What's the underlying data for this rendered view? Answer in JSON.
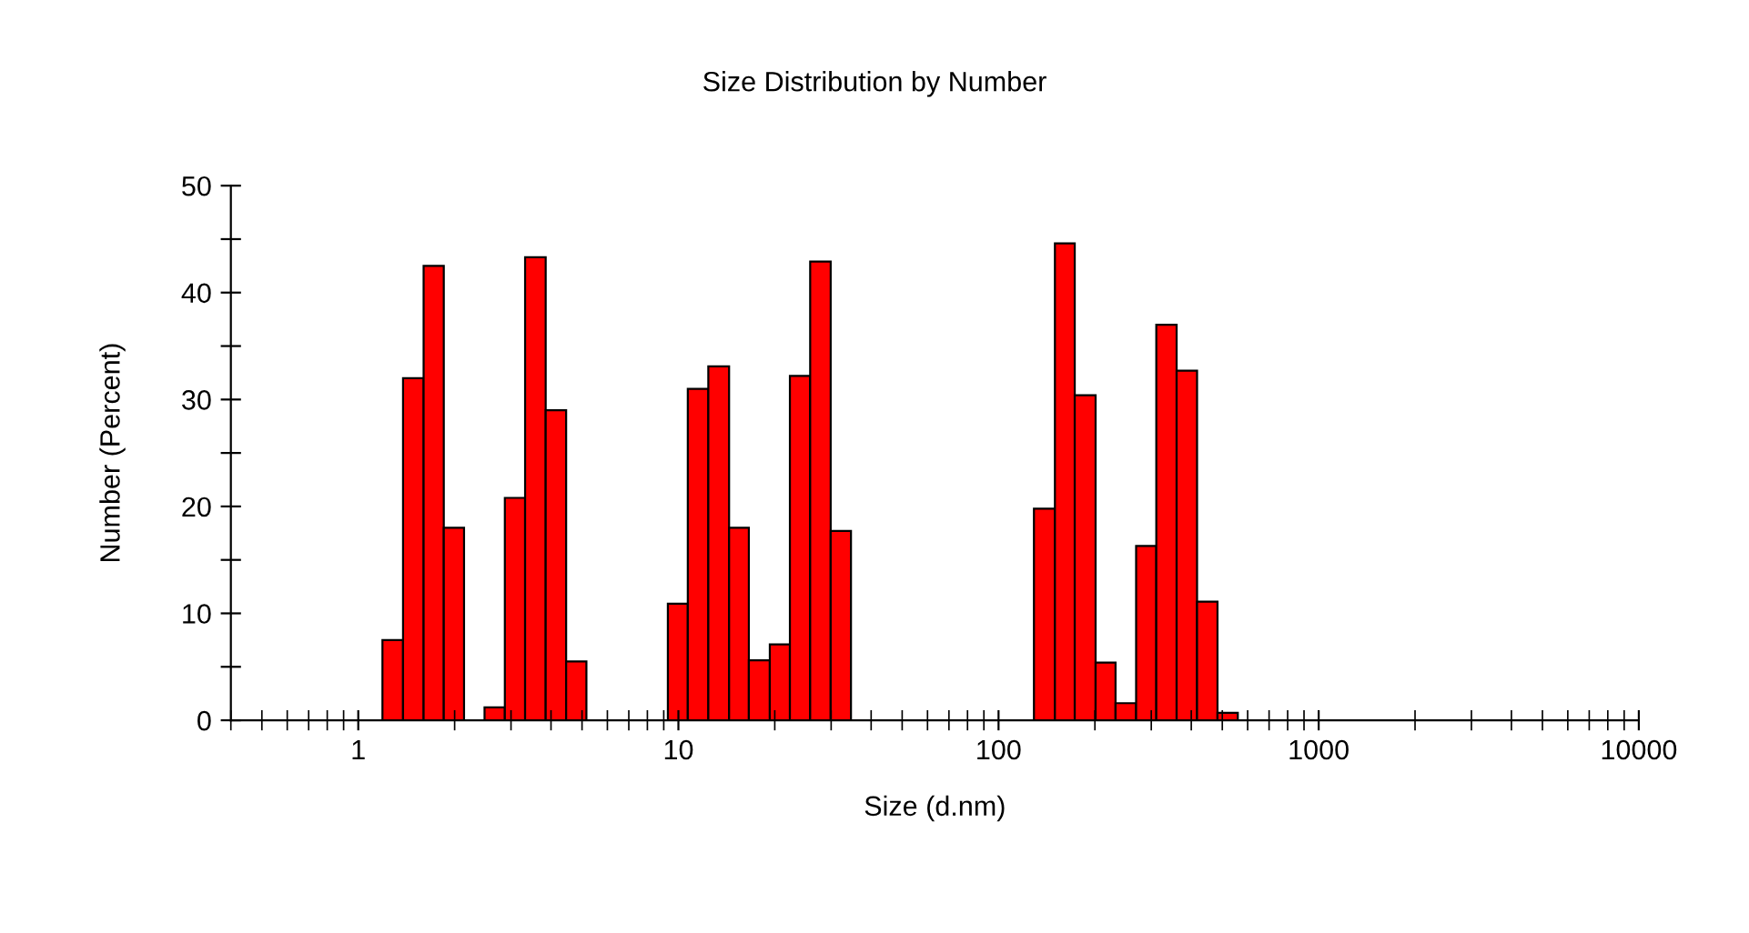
{
  "chart_data": {
    "type": "histogram",
    "title": "Size Distribution by Number",
    "xlabel": "Size (d.nm)",
    "ylabel": "Number (Percent)",
    "bins": [
      1.19,
      1.38,
      1.6,
      1.85,
      2.14,
      2.48,
      2.87,
      3.32,
      3.85,
      4.46,
      5.16,
      9.27,
      10.7,
      12.4,
      14.4,
      16.6,
      19.3,
      22.3,
      25.8,
      29.9,
      34.6,
      129,
      150,
      173,
      201,
      232,
      269,
      311,
      360,
      417,
      483,
      559
    ],
    "values": [
      7.5,
      32,
      42.5,
      18,
      0,
      1.2,
      20.8,
      43.3,
      29,
      5.5,
      0,
      10.9,
      31,
      33.1,
      18,
      5.6,
      7.1,
      32.2,
      42.9,
      17.7,
      0,
      19.8,
      44.6,
      30.4,
      5.4,
      1.6,
      16.3,
      37,
      32.7,
      11.1,
      0.7
    ],
    "color": "#ff0000",
    "log": "x",
    "xlim": [
      0.4,
      10000
    ],
    "xticks": [
      1,
      10,
      100,
      1000,
      10000
    ],
    "ylim": [
      0,
      50
    ],
    "yticks": [
      0,
      {
        "value": 5,
        "label": null
      },
      10,
      {
        "value": 15,
        "label": null
      },
      20,
      {
        "value": 25,
        "label": null
      },
      30,
      {
        "value": 35,
        "label": null
      },
      40,
      {
        "value": 45,
        "label": null
      },
      50
    ],
    "grid": false
  }
}
